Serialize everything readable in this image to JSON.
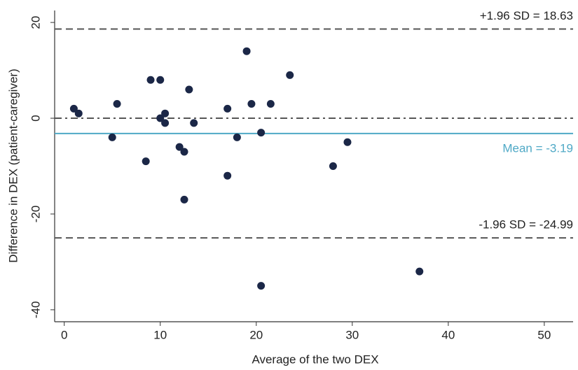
{
  "chart_data": {
    "type": "scatter",
    "x_label": "Average of the two DEX",
    "y_label": "Difference in DEX (patient-caregiver)",
    "x": [
      1,
      1.5,
      5,
      5.5,
      8.5,
      9,
      10,
      10,
      10.5,
      10.5,
      12,
      12.5,
      12.5,
      13,
      13.5,
      17,
      17,
      18,
      19,
      19.5,
      20.5,
      20.5,
      21.5,
      23.5,
      28,
      29.5,
      37
    ],
    "y": [
      2,
      1,
      -4,
      3,
      -9,
      8,
      8,
      0,
      1,
      -1,
      -6,
      -7,
      -17,
      6,
      -1,
      2,
      -12,
      -4,
      14,
      3,
      -3,
      -35,
      3,
      9,
      -10,
      -5,
      -32
    ],
    "color": "#1b2747",
    "reference_lines": [
      {
        "value": 18.63,
        "label": "+1.96 SD = 18.63",
        "style": "dashed",
        "color": "#555555"
      },
      {
        "value": -3.19,
        "label": "Mean = -3.19",
        "style": "solid",
        "color": "#4fa9c6"
      },
      {
        "value": -24.99,
        "label": "-1.96 SD = -24.99",
        "style": "dashed",
        "color": "#555555"
      },
      {
        "value": 0,
        "style": "dashdot",
        "color": "#555555"
      }
    ],
    "xlim": [
      -1,
      53
    ],
    "ylim": [
      -42.5,
      22.5
    ],
    "xticks": [
      0,
      10,
      20,
      30,
      40,
      50
    ],
    "yticks": [
      -40,
      -20,
      0,
      20
    ],
    "grid": false
  }
}
